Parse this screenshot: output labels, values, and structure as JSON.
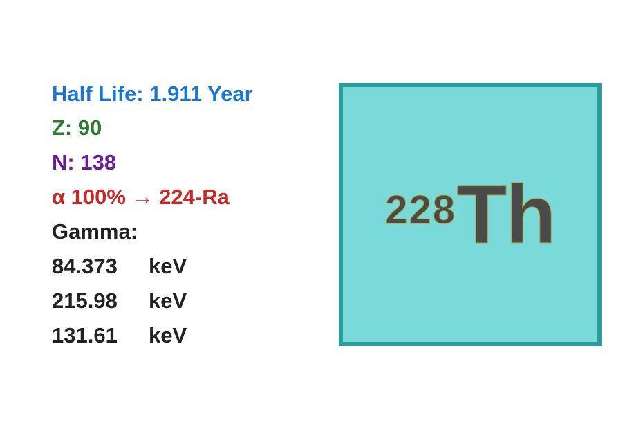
{
  "colors": {
    "half_life": "#1976d2",
    "z": "#2e7d32",
    "n": "#6a1b9a",
    "decay": "#c62828",
    "gamma": "#222222",
    "gamma_values": "#222222",
    "tile_bg": "#7ad9d9",
    "tile_border": "#2a9d9d",
    "symbol_fill": "#4a4a4a",
    "symbol_stroke": "#b8a030"
  },
  "info": {
    "half_life": "Half Life: 1.911 Year",
    "z": "Z: 90",
    "n": "N: 138",
    "decay": "α 100% → 224-Ra",
    "gamma_label": "Gamma:",
    "gamma_values": [
      "84.373",
      "215.98",
      "131.61"
    ],
    "gamma_unit": "keV"
  },
  "element": {
    "mass_number": "228",
    "symbol": "Th"
  },
  "font": {
    "info_size": 31,
    "info_weight": "bold",
    "mass_size": 58,
    "symbol_size": 120
  }
}
